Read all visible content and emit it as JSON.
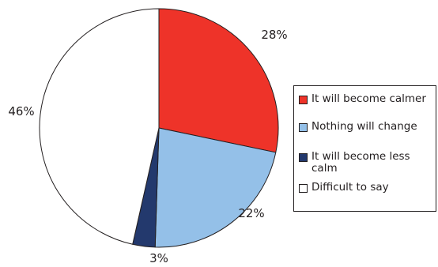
{
  "chart_data": {
    "type": "pie",
    "categories": [
      "It will become calmer",
      "Nothing will change",
      "It will become less calm",
      "Difficult to say"
    ],
    "values": [
      28,
      22,
      3,
      46
    ],
    "labels": [
      "28%",
      "22%",
      "3%",
      "46%"
    ],
    "colors": [
      "#ee3329",
      "#94c0e8",
      "#23396d",
      "#ffffff"
    ],
    "start_angle_deg": 0,
    "direction": "clockwise",
    "legend_position": "right"
  }
}
